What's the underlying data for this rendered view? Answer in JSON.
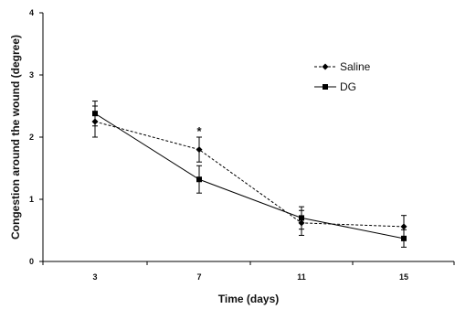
{
  "chart_data": {
    "type": "line",
    "xlabel": "Time (days)",
    "ylabel": "Congestion around the wound (degree)",
    "categories": [
      "3",
      "7",
      "11",
      "15"
    ],
    "ylim": [
      0,
      4
    ],
    "yticks": [
      "0",
      "1",
      "2",
      "3",
      "4"
    ],
    "grid": false,
    "legend_position": "top-right",
    "series": [
      {
        "name": "Saline",
        "line_style": "dashed",
        "marker": "diamond",
        "color": "#000000",
        "values": [
          2.25,
          1.8,
          0.62,
          0.56
        ],
        "errors": [
          0.25,
          0.2,
          0.2,
          0.18
        ]
      },
      {
        "name": "DG",
        "line_style": "solid",
        "marker": "square",
        "color": "#000000",
        "values": [
          2.38,
          1.32,
          0.7,
          0.37
        ],
        "errors": [
          0.2,
          0.22,
          0.18,
          0.14
        ]
      }
    ],
    "annotations": [
      {
        "text": "*",
        "category": "7"
      }
    ]
  }
}
